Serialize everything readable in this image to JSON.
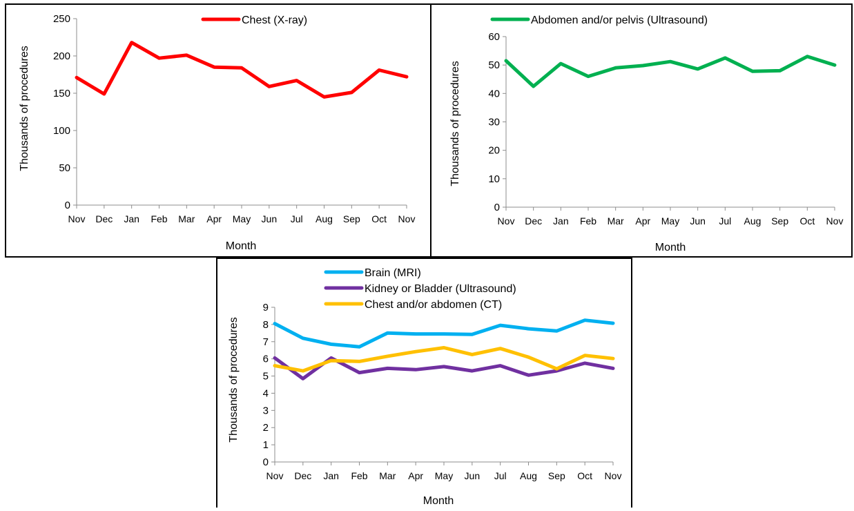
{
  "chart_data": [
    {
      "type": "line",
      "categories": [
        "Nov",
        "Dec",
        "Jan",
        "Feb",
        "Mar",
        "Apr",
        "May",
        "Jun",
        "Jul",
        "Aug",
        "Sep",
        "Oct",
        "Nov"
      ],
      "series": [
        {
          "name": "Chest (X-ray)",
          "color": "#ff0000",
          "values": [
            171,
            149,
            218,
            197,
            201,
            185,
            184,
            159,
            167,
            145,
            151,
            181,
            172
          ]
        }
      ],
      "xlabel": "Month",
      "ylabel": "Thousands of procedures",
      "ylim": [
        0,
        250
      ],
      "yticks": [
        0,
        50,
        100,
        150,
        200,
        250
      ],
      "grid": false,
      "legend_position": "top"
    },
    {
      "type": "line",
      "categories": [
        "Nov",
        "Dec",
        "Jan",
        "Feb",
        "Mar",
        "Apr",
        "May",
        "Jun",
        "Jul",
        "Aug",
        "Sep",
        "Oct",
        "Nov"
      ],
      "series": [
        {
          "name": "Abdomen and/or pelvis (Ultrasound)",
          "color": "#00b050",
          "values": [
            51.5,
            42.5,
            50.5,
            46.0,
            49.0,
            49.8,
            51.2,
            48.6,
            52.5,
            47.8,
            48.0,
            53.0,
            50.0
          ]
        }
      ],
      "xlabel": "Month",
      "ylabel": "Thousands of procedures",
      "ylim": [
        0,
        60
      ],
      "yticks": [
        0,
        10,
        20,
        30,
        40,
        50,
        60
      ],
      "grid": false,
      "legend_position": "top"
    },
    {
      "type": "line",
      "categories": [
        "Nov",
        "Dec",
        "Jan",
        "Feb",
        "Mar",
        "Apr",
        "May",
        "Jun",
        "Jul",
        "Aug",
        "Sep",
        "Oct",
        "Nov"
      ],
      "series": [
        {
          "name": "Brain (MRI)",
          "color": "#00b0f0",
          "values": [
            8.05,
            7.2,
            6.85,
            6.7,
            7.5,
            7.45,
            7.45,
            7.42,
            7.95,
            7.75,
            7.62,
            8.25,
            8.07
          ]
        },
        {
          "name": "Kidney or Bladder (Ultrasound)",
          "color": "#7030a0",
          "values": [
            6.05,
            4.85,
            6.05,
            5.2,
            5.45,
            5.37,
            5.55,
            5.3,
            5.6,
            5.05,
            5.3,
            5.75,
            5.45
          ]
        },
        {
          "name": "Chest and/or abdomen (CT)",
          "color": "#ffc000",
          "values": [
            5.6,
            5.3,
            5.9,
            5.85,
            6.15,
            6.42,
            6.65,
            6.25,
            6.6,
            6.1,
            5.42,
            6.2,
            6.02
          ]
        }
      ],
      "xlabel": "Month",
      "ylabel": "Thousands of procedures",
      "ylim": [
        0,
        9
      ],
      "yticks": [
        0,
        1,
        2,
        3,
        4,
        5,
        6,
        7,
        8,
        9
      ],
      "grid": false,
      "legend_position": "top"
    }
  ]
}
